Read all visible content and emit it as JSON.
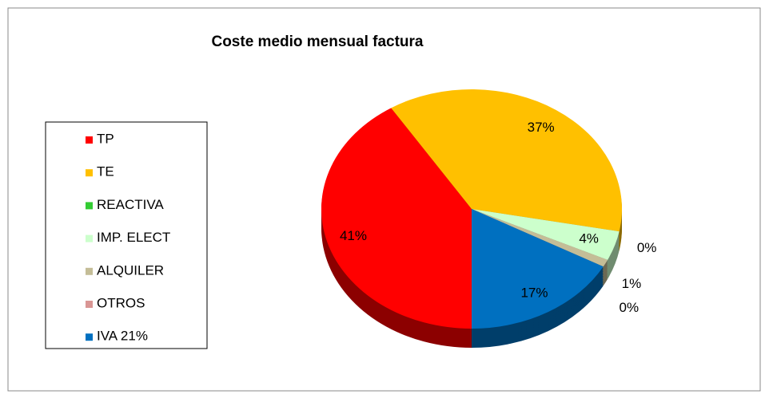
{
  "chart_data": {
    "type": "pie",
    "title": "Coste medio mensual factura",
    "categories": [
      "TP",
      "TE",
      "REACTIVA",
      "IMP. ELECT",
      "ALQUILER",
      "OTROS",
      "IVA 21%"
    ],
    "values": [
      41,
      37,
      0,
      4,
      1,
      0,
      17
    ],
    "value_labels": [
      "41%",
      "37%",
      "0%",
      "4%",
      "1%",
      "0%",
      "17%"
    ],
    "colors": [
      "#ff0000",
      "#ffc000",
      "#33cc33",
      "#ccffcc",
      "#c4bd97",
      "#d99694",
      "#0070c0"
    ],
    "legend": "left"
  }
}
